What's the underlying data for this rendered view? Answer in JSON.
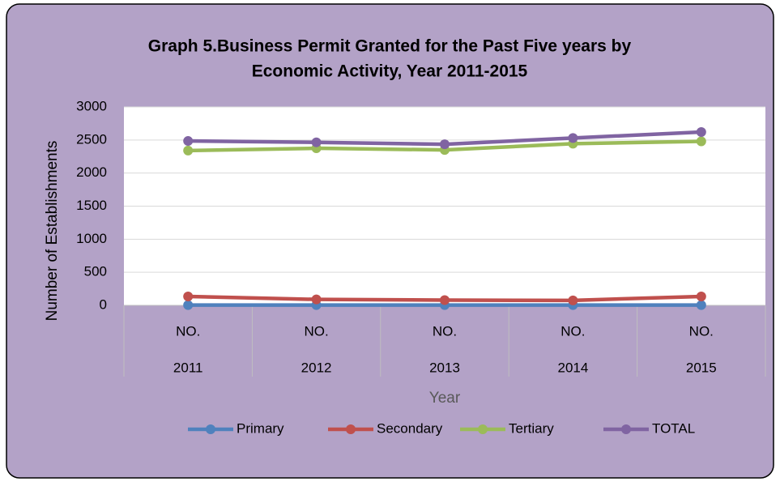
{
  "chart_data": {
    "type": "line",
    "title_lines": [
      "Graph 5.Business Permit Granted for the Past Five years by",
      "Economic Activity, Year 2011-2015"
    ],
    "categories": [
      "2011",
      "2012",
      "2013",
      "2014",
      "2015"
    ],
    "category_sublabels": [
      "NO.",
      "NO.",
      "NO.",
      "NO.",
      "NO."
    ],
    "x_label": "Year",
    "y_label": "Number of Establishments",
    "ylim": [
      0,
      3000
    ],
    "yticks": [
      0,
      500,
      1000,
      1500,
      2000,
      2500,
      3000
    ],
    "grid": true,
    "legend": "bottom",
    "series": [
      {
        "name": "Primary",
        "color": "#4f81bd",
        "values": [
          5,
          5,
          5,
          5,
          5
        ]
      },
      {
        "name": "Secondary",
        "color": "#c0504d",
        "values": [
          135,
          90,
          80,
          75,
          135
        ]
      },
      {
        "name": "Tertiary",
        "color": "#9bbb59",
        "values": [
          2340,
          2375,
          2350,
          2445,
          2480
        ]
      },
      {
        "name": "TOTAL",
        "color": "#8064a2",
        "values": [
          2485,
          2465,
          2435,
          2530,
          2620
        ]
      }
    ]
  }
}
